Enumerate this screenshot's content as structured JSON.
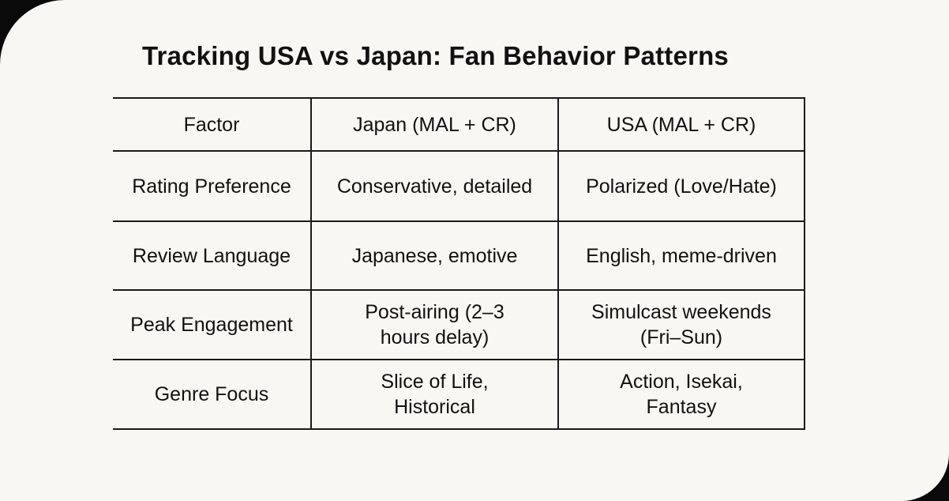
{
  "title": "Tracking USA vs Japan: Fan Behavior Patterns",
  "table": {
    "headers": [
      "Factor",
      "Japan (MAL + CR)",
      "USA (MAL + CR)"
    ],
    "rows": [
      [
        "Rating Preference",
        "Conservative, detailed",
        "Polarized (Love/Hate)"
      ],
      [
        "Review Language",
        "Japanese, emotive",
        "English, meme-driven"
      ],
      [
        "Peak Engagement",
        "Post-airing (2–3 hours delay)",
        "Simulcast weekends (Fri–Sun)"
      ],
      [
        "Genre Focus",
        "Slice of Life, Historical",
        "Action, Isekai, Fantasy"
      ]
    ]
  }
}
